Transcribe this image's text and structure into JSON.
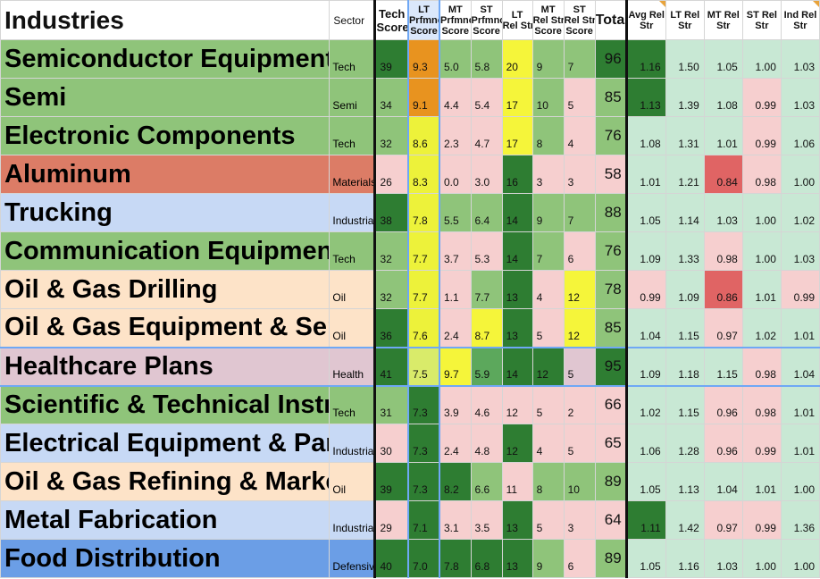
{
  "headers": {
    "industries": "Industries",
    "sector": "Sector",
    "tech_score": [
      "Tech",
      "Score"
    ],
    "lt_perf": [
      "LT",
      "Prfmnc",
      "Score"
    ],
    "mt_perf": [
      "MT",
      "Prfmnc",
      "Score"
    ],
    "st_perf": [
      "ST",
      "Prfmnc",
      "Score"
    ],
    "lt_rel": [
      "LT",
      "Rel Str"
    ],
    "mt_rel": [
      "MT",
      "Rel Str",
      "Score"
    ],
    "st_rel": [
      "ST",
      "Rel Str",
      "Score"
    ],
    "total": "Total",
    "avg_rel": [
      "Avg Rel",
      "Str"
    ],
    "lt_rel_str": [
      "LT Rel",
      "Str"
    ],
    "mt_rel_str": [
      "MT Rel",
      "Str"
    ],
    "st_rel_str": [
      "ST Rel",
      "Str"
    ],
    "ind_rel_str": [
      "Ind Rel",
      "Str"
    ]
  },
  "rows": [
    {
      "industry": "Semiconductor Equipment & Materials",
      "sector": "Tech",
      "tech": "39",
      "lt": "9.3",
      "mt": "5.0",
      "st": "5.8",
      "ltr": "20",
      "mtr": "9",
      "str": "7",
      "total": "96",
      "avg": "1.16",
      "ltrs": "1.50",
      "mtrs": "1.05",
      "strs": "1.00",
      "indrs": "1.03"
    },
    {
      "industry": "Semi",
      "sector": "Semi",
      "tech": "34",
      "lt": "9.1",
      "mt": "4.4",
      "st": "5.4",
      "ltr": "17",
      "mtr": "10",
      "str": "5",
      "total": "85",
      "avg": "1.13",
      "ltrs": "1.39",
      "mtrs": "1.08",
      "strs": "0.99",
      "indrs": "1.03"
    },
    {
      "industry": "Electronic Components",
      "sector": "Tech",
      "tech": "32",
      "lt": "8.6",
      "mt": "2.3",
      "st": "4.7",
      "ltr": "17",
      "mtr": "8",
      "str": "4",
      "total": "76",
      "avg": "1.08",
      "ltrs": "1.31",
      "mtrs": "1.01",
      "strs": "0.99",
      "indrs": "1.06"
    },
    {
      "industry": "Aluminum",
      "sector": "Materials",
      "tech": "26",
      "lt": "8.3",
      "mt": "0.0",
      "st": "3.0",
      "ltr": "16",
      "mtr": "3",
      "str": "3",
      "total": "58",
      "avg": "1.01",
      "ltrs": "1.21",
      "mtrs": "0.84",
      "strs": "0.98",
      "indrs": "1.00"
    },
    {
      "industry": "Trucking",
      "sector": "Industrials",
      "tech": "38",
      "lt": "7.8",
      "mt": "5.5",
      "st": "6.4",
      "ltr": "14",
      "mtr": "9",
      "str": "7",
      "total": "88",
      "avg": "1.05",
      "ltrs": "1.14",
      "mtrs": "1.03",
      "strs": "1.00",
      "indrs": "1.02"
    },
    {
      "industry": "Communication Equipment",
      "sector": "Tech",
      "tech": "32",
      "lt": "7.7",
      "mt": "3.7",
      "st": "5.3",
      "ltr": "14",
      "mtr": "7",
      "str": "6",
      "total": "76",
      "avg": "1.09",
      "ltrs": "1.33",
      "mtrs": "0.98",
      "strs": "1.00",
      "indrs": "1.03"
    },
    {
      "industry": "Oil & Gas Drilling",
      "sector": "Oil",
      "tech": "32",
      "lt": "7.7",
      "mt": "1.1",
      "st": "7.7",
      "ltr": "13",
      "mtr": "4",
      "str": "12",
      "total": "78",
      "avg": "0.99",
      "ltrs": "1.09",
      "mtrs": "0.86",
      "strs": "1.01",
      "indrs": "0.99"
    },
    {
      "industry": "Oil & Gas Equipment & Services",
      "sector": "Oil",
      "tech": "36",
      "lt": "7.6",
      "mt": "2.4",
      "st": "8.7",
      "ltr": "13",
      "mtr": "5",
      "str": "12",
      "total": "85",
      "avg": "1.04",
      "ltrs": "1.15",
      "mtrs": "0.97",
      "strs": "1.02",
      "indrs": "1.01"
    },
    {
      "industry": "Healthcare Plans",
      "sector": "Health",
      "tech": "41",
      "lt": "7.5",
      "mt": "9.7",
      "st": "5.9",
      "ltr": "14",
      "mtr": "12",
      "str": "5",
      "total": "95",
      "avg": "1.09",
      "ltrs": "1.18",
      "mtrs": "1.15",
      "strs": "0.98",
      "indrs": "1.04"
    },
    {
      "industry": "Scientific & Technical Instruments",
      "sector": "Tech",
      "tech": "31",
      "lt": "7.3",
      "mt": "3.9",
      "st": "4.6",
      "ltr": "12",
      "mtr": "5",
      "str": "2",
      "total": "66",
      "avg": "1.02",
      "ltrs": "1.15",
      "mtrs": "0.96",
      "strs": "0.98",
      "indrs": "1.01"
    },
    {
      "industry": "Electrical Equipment & Parts",
      "sector": "Industrials",
      "tech": "30",
      "lt": "7.3",
      "mt": "2.4",
      "st": "4.8",
      "ltr": "12",
      "mtr": "4",
      "str": "5",
      "total": "65",
      "avg": "1.06",
      "ltrs": "1.28",
      "mtrs": "0.96",
      "strs": "0.99",
      "indrs": "1.01"
    },
    {
      "industry": "Oil & Gas Refining & Marketing",
      "sector": "Oil",
      "tech": "39",
      "lt": "7.3",
      "mt": "8.2",
      "st": "6.6",
      "ltr": "11",
      "mtr": "8",
      "str": "10",
      "total": "89",
      "avg": "1.05",
      "ltrs": "1.13",
      "mtrs": "1.04",
      "strs": "1.01",
      "indrs": "1.00"
    },
    {
      "industry": "Metal Fabrication",
      "sector": "Industrials",
      "tech": "29",
      "lt": "7.1",
      "mt": "3.1",
      "st": "3.5",
      "ltr": "13",
      "mtr": "5",
      "str": "3",
      "total": "64",
      "avg": "1.11",
      "ltrs": "1.42",
      "mtrs": "0.97",
      "strs": "0.99",
      "indrs": "1.36"
    },
    {
      "industry": "Food Distribution",
      "sector": "Defensive",
      "tech": "40",
      "lt": "7.0",
      "mt": "7.8",
      "st": "6.8",
      "ltr": "13",
      "mtr": "9",
      "str": "6",
      "total": "89",
      "avg": "1.05",
      "ltrs": "1.16",
      "mtrs": "1.03",
      "strs": "1.00",
      "indrs": "1.00"
    }
  ],
  "colors": {
    "ind_bg": [
      "#8fc47a",
      "#8fc47a",
      "#8fc47a",
      "#dc7c66",
      "#c7d9f5",
      "#8fc47a",
      "#fde3c8",
      "#fde3c8",
      "#e0c6d1",
      "#8fc47a",
      "#c7d9f5",
      "#fde3c8",
      "#c7d9f5",
      "#6b9ee6"
    ],
    "sec_bg": [
      "#8fc47a",
      "#8fc47a",
      "#8fc47a",
      "#dc7c66",
      "#c7d9f5",
      "#8fc47a",
      "#fde3c8",
      "#fde3c8",
      "#e0c6d1",
      "#8fc47a",
      "#c7d9f5",
      "#fde3c8",
      "#c7d9f5",
      "#6b9ee6"
    ],
    "tech_bg": [
      "#2e7d32",
      "#8fc47a",
      "#8fc47a",
      "#f6cfcf",
      "#2e7d32",
      "#8fc47a",
      "#8fc47a",
      "#2e7d32",
      "#2e7d32",
      "#8fc47a",
      "#f6cfcf",
      "#2e7d32",
      "#f6cfcf",
      "#2e7d32"
    ],
    "lt_bg": [
      "#e8931f",
      "#e8931f",
      "#edf23a",
      "#edf23a",
      "#edf23a",
      "#edf23a",
      "#edf23a",
      "#edf23a",
      "#d9eb6a",
      "#2e7d32",
      "#2e7d32",
      "#2e7d32",
      "#2e7d32",
      "#2e7d32"
    ],
    "mt_bg": [
      "#8fc47a",
      "#f6cfcf",
      "#f6cfcf",
      "#f6cfcf",
      "#8fc47a",
      "#f6cfcf",
      "#f6cfcf",
      "#f6cfcf",
      "#f5f53a",
      "#f6cfcf",
      "#f6cfcf",
      "#2e7d32",
      "#f6cfcf",
      "#2e7d32"
    ],
    "st_bg": [
      "#8fc47a",
      "#f6cfcf",
      "#f6cfcf",
      "#f6cfcf",
      "#8fc47a",
      "#f6cfcf",
      "#8fc47a",
      "#f5f53a",
      "#5ca85c",
      "#f6cfcf",
      "#f6cfcf",
      "#8fc47a",
      "#f6cfcf",
      "#2e7d32"
    ],
    "ltr_bg": [
      "#f5f53a",
      "#f5f53a",
      "#f5f53a",
      "#2e7d32",
      "#2e7d32",
      "#2e7d32",
      "#2e7d32",
      "#2e7d32",
      "#2e7d32",
      "#f6cfcf",
      "#2e7d32",
      "#f6cfcf",
      "#2e7d32",
      "#2e7d32"
    ],
    "mtr_bg": [
      "#8fc47a",
      "#8fc47a",
      "#8fc47a",
      "#f6cfcf",
      "#8fc47a",
      "#8fc47a",
      "#f6cfcf",
      "#f6cfcf",
      "#2e7d32",
      "#f6cfcf",
      "#f6cfcf",
      "#8fc47a",
      "#f6cfcf",
      "#8fc47a"
    ],
    "str_bg": [
      "#8fc47a",
      "#f6cfcf",
      "#f6cfcf",
      "#f6cfcf",
      "#8fc47a",
      "#f6cfcf",
      "#f5f53a",
      "#f5f53a",
      "#e0c6d1",
      "#f6cfcf",
      "#f6cfcf",
      "#8fc47a",
      "#f6cfcf",
      "#f6cfcf"
    ],
    "tot_bg": [
      "#2e7d32",
      "#8fc47a",
      "#8fc47a",
      "#f6cfcf",
      "#8fc47a",
      "#8fc47a",
      "#8fc47a",
      "#8fc47a",
      "#2e7d32",
      "#f6cfcf",
      "#f6cfcf",
      "#8fc47a",
      "#f6cfcf",
      "#8fc47a"
    ],
    "avg_bg": [
      "#2e7d32",
      "#2e7d32",
      "#c8e8d4",
      "#c8e8d4",
      "#c8e8d4",
      "#c8e8d4",
      "#f6cfcf",
      "#c8e8d4",
      "#c8e8d4",
      "#c8e8d4",
      "#c8e8d4",
      "#c8e8d4",
      "#2e7d32",
      "#c8e8d4"
    ],
    "ltrs_bg": [
      "#c8e8d4",
      "#c8e8d4",
      "#c8e8d4",
      "#c8e8d4",
      "#c8e8d4",
      "#c8e8d4",
      "#c8e8d4",
      "#c8e8d4",
      "#c8e8d4",
      "#c8e8d4",
      "#c8e8d4",
      "#c8e8d4",
      "#c8e8d4",
      "#c8e8d4"
    ],
    "mtrs_bg": [
      "#c8e8d4",
      "#c8e8d4",
      "#c8e8d4",
      "#e06464",
      "#c8e8d4",
      "#f6cfcf",
      "#e06464",
      "#f6cfcf",
      "#c8e8d4",
      "#f6cfcf",
      "#f6cfcf",
      "#c8e8d4",
      "#f6cfcf",
      "#c8e8d4"
    ],
    "strs_bg": [
      "#c8e8d4",
      "#f6cfcf",
      "#f6cfcf",
      "#f6cfcf",
      "#c8e8d4",
      "#c8e8d4",
      "#c8e8d4",
      "#c8e8d4",
      "#f6cfcf",
      "#f6cfcf",
      "#f6cfcf",
      "#c8e8d4",
      "#f6cfcf",
      "#c8e8d4"
    ],
    "indrs_bg": [
      "#c8e8d4",
      "#c8e8d4",
      "#c8e8d4",
      "#c8e8d4",
      "#c8e8d4",
      "#c8e8d4",
      "#f6cfcf",
      "#c8e8d4",
      "#c8e8d4",
      "#c8e8d4",
      "#c8e8d4",
      "#c8e8d4",
      "#c8e8d4",
      "#c8e8d4"
    ]
  },
  "selected_row": 8
}
